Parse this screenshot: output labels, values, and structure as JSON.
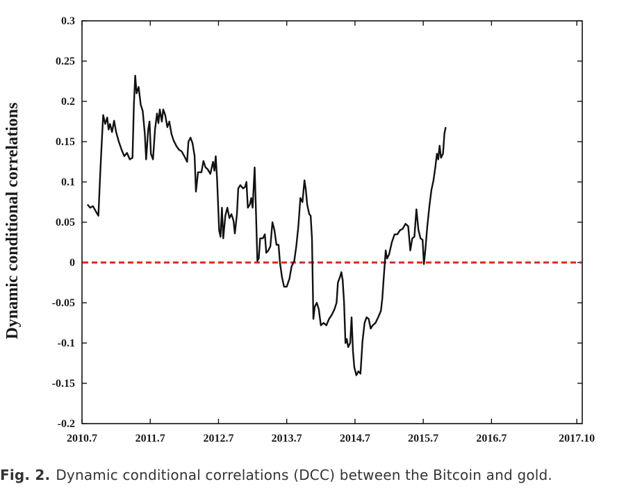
{
  "caption": {
    "label": "Fig. 2.",
    "text": "Dynamic conditional correlations (DCC) between the Bitcoin and gold."
  },
  "chart_data": {
    "type": "line",
    "title": "",
    "xlabel": "",
    "ylabel": "Dynamic conditional correlations",
    "ylim": [
      -0.2,
      0.3
    ],
    "xlim": [
      2010.5,
      2017.83
    ],
    "grid": false,
    "y_ticks": [
      0.3,
      0.25,
      0.2,
      0.15,
      0.1,
      0.05,
      0,
      -0.05,
      -0.1,
      -0.15,
      -0.2
    ],
    "y_tick_labels": [
      "0.3",
      "0.25",
      "0.2",
      "0.15",
      "0.1",
      "0.05",
      "0",
      "-0.05",
      "-0.1",
      "-0.15",
      "-0.2"
    ],
    "x_ticks": [
      {
        "label": "2010.7",
        "value": 2010.5
      },
      {
        "label": "2011.7",
        "value": 2011.5
      },
      {
        "label": "2012.7",
        "value": 2012.5
      },
      {
        "label": "2013.7",
        "value": 2013.5
      },
      {
        "label": "2014.7",
        "value": 2014.5
      },
      {
        "label": "2015.7",
        "value": 2015.5
      },
      {
        "label": "2016.7",
        "value": 2016.5
      },
      {
        "label": "2017.10",
        "value": 2017.75
      }
    ],
    "reference_line": {
      "y": 0,
      "color": "#e8221e",
      "style": "dashed"
    },
    "series": [
      {
        "color": "#111111",
        "points": [
          [
            2010.58,
            0.072
          ],
          [
            2010.62,
            0.068
          ],
          [
            2010.66,
            0.07
          ],
          [
            2010.7,
            0.064
          ],
          [
            2010.74,
            0.058
          ],
          [
            2010.77,
            0.115
          ],
          [
            2010.79,
            0.15
          ],
          [
            2010.81,
            0.183
          ],
          [
            2010.84,
            0.172
          ],
          [
            2010.87,
            0.18
          ],
          [
            2010.89,
            0.165
          ],
          [
            2010.91,
            0.172
          ],
          [
            2010.94,
            0.162
          ],
          [
            2010.97,
            0.176
          ],
          [
            2011.0,
            0.162
          ],
          [
            2011.04,
            0.15
          ],
          [
            2011.08,
            0.14
          ],
          [
            2011.12,
            0.132
          ],
          [
            2011.16,
            0.136
          ],
          [
            2011.2,
            0.128
          ],
          [
            2011.24,
            0.13
          ],
          [
            2011.26,
            0.196
          ],
          [
            2011.28,
            0.232
          ],
          [
            2011.3,
            0.21
          ],
          [
            2011.33,
            0.218
          ],
          [
            2011.36,
            0.196
          ],
          [
            2011.39,
            0.188
          ],
          [
            2011.42,
            0.16
          ],
          [
            2011.44,
            0.128
          ],
          [
            2011.47,
            0.165
          ],
          [
            2011.49,
            0.175
          ],
          [
            2011.51,
            0.135
          ],
          [
            2011.54,
            0.128
          ],
          [
            2011.57,
            0.165
          ],
          [
            2011.6,
            0.185
          ],
          [
            2011.62,
            0.173
          ],
          [
            2011.64,
            0.19
          ],
          [
            2011.67,
            0.175
          ],
          [
            2011.69,
            0.19
          ],
          [
            2011.72,
            0.183
          ],
          [
            2011.75,
            0.168
          ],
          [
            2011.78,
            0.175
          ],
          [
            2011.81,
            0.16
          ],
          [
            2011.84,
            0.152
          ],
          [
            2011.88,
            0.145
          ],
          [
            2011.92,
            0.14
          ],
          [
            2011.96,
            0.138
          ],
          [
            2012.0,
            0.132
          ],
          [
            2012.04,
            0.125
          ],
          [
            2012.06,
            0.15
          ],
          [
            2012.09,
            0.155
          ],
          [
            2012.12,
            0.148
          ],
          [
            2012.15,
            0.132
          ],
          [
            2012.17,
            0.088
          ],
          [
            2012.2,
            0.112
          ],
          [
            2012.25,
            0.112
          ],
          [
            2012.28,
            0.126
          ],
          [
            2012.31,
            0.118
          ],
          [
            2012.34,
            0.116
          ],
          [
            2012.38,
            0.11
          ],
          [
            2012.42,
            0.125
          ],
          [
            2012.44,
            0.114
          ],
          [
            2012.46,
            0.132
          ],
          [
            2012.48,
            0.102
          ],
          [
            2012.51,
            0.04
          ],
          [
            2012.53,
            0.032
          ],
          [
            2012.55,
            0.068
          ],
          [
            2012.57,
            0.03
          ],
          [
            2012.6,
            0.058
          ],
          [
            2012.63,
            0.068
          ],
          [
            2012.66,
            0.055
          ],
          [
            2012.69,
            0.06
          ],
          [
            2012.72,
            0.052
          ],
          [
            2012.74,
            0.036
          ],
          [
            2012.77,
            0.06
          ],
          [
            2012.79,
            0.092
          ],
          [
            2012.82,
            0.096
          ],
          [
            2012.86,
            0.092
          ],
          [
            2012.89,
            0.094
          ],
          [
            2012.91,
            0.1
          ],
          [
            2012.93,
            0.068
          ],
          [
            2012.96,
            0.072
          ],
          [
            2012.98,
            0.08
          ],
          [
            2013.0,
            0.068
          ],
          [
            2013.03,
            0.118
          ],
          [
            2013.05,
            0.06
          ],
          [
            2013.07,
            0.002
          ],
          [
            2013.09,
            0.005
          ],
          [
            2013.11,
            0.03
          ],
          [
            2013.15,
            0.03
          ],
          [
            2013.18,
            0.035
          ],
          [
            2013.2,
            0.012
          ],
          [
            2013.23,
            0.015
          ],
          [
            2013.26,
            0.02
          ],
          [
            2013.29,
            0.05
          ],
          [
            2013.32,
            0.04
          ],
          [
            2013.35,
            0.022
          ],
          [
            2013.38,
            0.022
          ],
          [
            2013.4,
            0.0
          ],
          [
            2013.43,
            -0.018
          ],
          [
            2013.46,
            -0.03
          ],
          [
            2013.5,
            -0.03
          ],
          [
            2013.54,
            -0.02
          ],
          [
            2013.57,
            -0.005
          ],
          [
            2013.61,
            0.002
          ],
          [
            2013.64,
            0.02
          ],
          [
            2013.67,
            0.045
          ],
          [
            2013.7,
            0.08
          ],
          [
            2013.73,
            0.075
          ],
          [
            2013.76,
            0.102
          ],
          [
            2013.78,
            0.09
          ],
          [
            2013.8,
            0.072
          ],
          [
            2013.83,
            0.06
          ],
          [
            2013.85,
            0.058
          ],
          [
            2013.87,
            0.03
          ],
          [
            2013.89,
            -0.07
          ],
          [
            2013.91,
            -0.055
          ],
          [
            2013.94,
            -0.05
          ],
          [
            2013.97,
            -0.058
          ],
          [
            2014.0,
            -0.078
          ],
          [
            2014.04,
            -0.075
          ],
          [
            2014.08,
            -0.078
          ],
          [
            2014.12,
            -0.07
          ],
          [
            2014.16,
            -0.065
          ],
          [
            2014.2,
            -0.058
          ],
          [
            2014.23,
            -0.05
          ],
          [
            2014.25,
            -0.025
          ],
          [
            2014.28,
            -0.018
          ],
          [
            2014.3,
            -0.012
          ],
          [
            2014.32,
            -0.022
          ],
          [
            2014.34,
            -0.05
          ],
          [
            2014.36,
            -0.1
          ],
          [
            2014.38,
            -0.095
          ],
          [
            2014.4,
            -0.105
          ],
          [
            2014.43,
            -0.1
          ],
          [
            2014.45,
            -0.068
          ],
          [
            2014.47,
            -0.11
          ],
          [
            2014.49,
            -0.13
          ],
          [
            2014.52,
            -0.14
          ],
          [
            2014.55,
            -0.135
          ],
          [
            2014.58,
            -0.138
          ],
          [
            2014.61,
            -0.098
          ],
          [
            2014.64,
            -0.075
          ],
          [
            2014.67,
            -0.068
          ],
          [
            2014.7,
            -0.07
          ],
          [
            2014.73,
            -0.082
          ],
          [
            2014.76,
            -0.078
          ],
          [
            2014.8,
            -0.075
          ],
          [
            2014.84,
            -0.068
          ],
          [
            2014.88,
            -0.06
          ],
          [
            2014.9,
            -0.045
          ],
          [
            2014.92,
            -0.02
          ],
          [
            2014.95,
            0.015
          ],
          [
            2014.97,
            0.005
          ],
          [
            2015.0,
            0.01
          ],
          [
            2015.04,
            0.025
          ],
          [
            2015.08,
            0.035
          ],
          [
            2015.12,
            0.035
          ],
          [
            2015.16,
            0.04
          ],
          [
            2015.2,
            0.042
          ],
          [
            2015.24,
            0.048
          ],
          [
            2015.28,
            0.045
          ],
          [
            2015.31,
            0.015
          ],
          [
            2015.34,
            0.03
          ],
          [
            2015.37,
            0.032
          ],
          [
            2015.4,
            0.066
          ],
          [
            2015.43,
            0.04
          ],
          [
            2015.46,
            0.03
          ],
          [
            2015.49,
            0.028
          ],
          [
            2015.51,
            -0.002
          ],
          [
            2015.53,
            0.015
          ],
          [
            2015.56,
            0.045
          ],
          [
            2015.59,
            0.07
          ],
          [
            2015.62,
            0.09
          ],
          [
            2015.65,
            0.102
          ],
          [
            2015.68,
            0.12
          ],
          [
            2015.7,
            0.135
          ],
          [
            2015.72,
            0.128
          ],
          [
            2015.74,
            0.145
          ],
          [
            2015.76,
            0.13
          ],
          [
            2015.79,
            0.135
          ],
          [
            2015.81,
            0.16
          ],
          [
            2015.83,
            0.168
          ]
        ]
      }
    ]
  }
}
